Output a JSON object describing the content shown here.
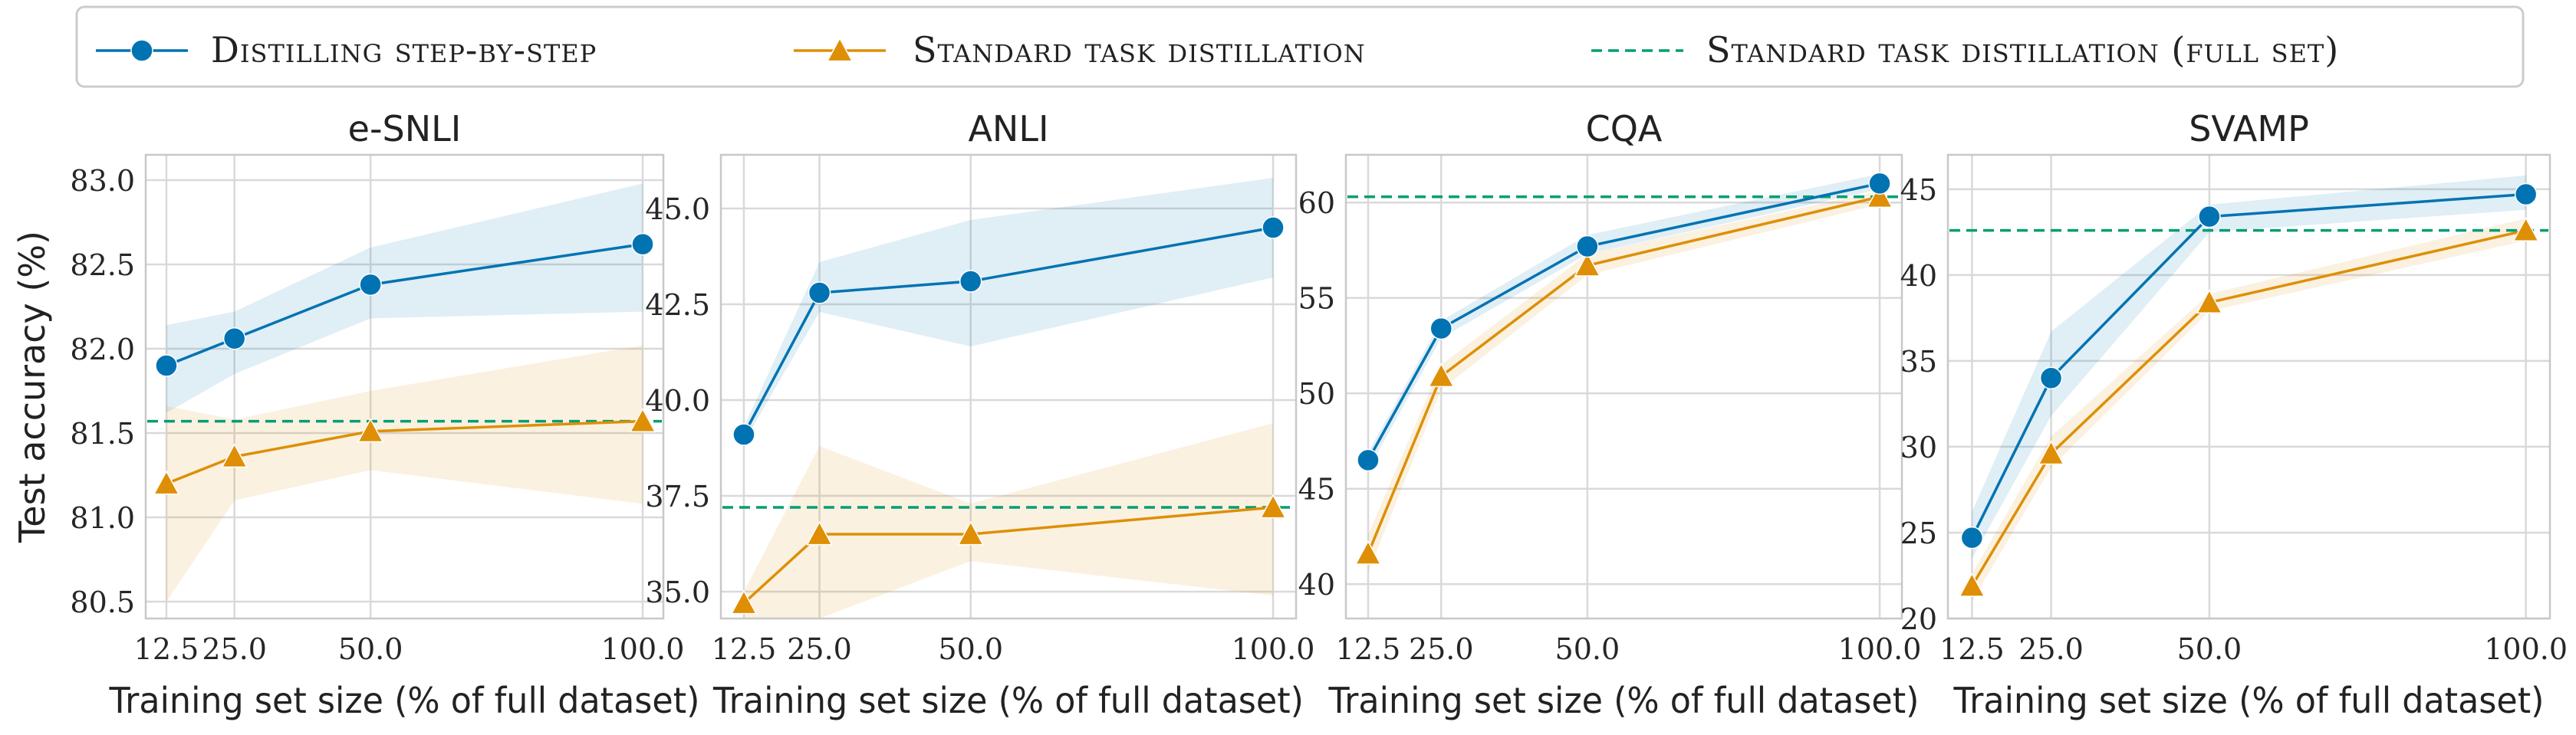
{
  "legend": {
    "items": [
      {
        "key": "dss",
        "label": "Distilling step-by-step",
        "color": "#0173b2",
        "marker": "circle",
        "style": "solid"
      },
      {
        "key": "std",
        "label": "Standard task distillation",
        "color": "#de8f05",
        "marker": "triangle",
        "style": "solid"
      },
      {
        "key": "full",
        "label": "Standard task distillation (full set)",
        "color": "#029e73",
        "marker": "none",
        "style": "dashed"
      }
    ],
    "placement": "top-center"
  },
  "colors": {
    "dss": "#0173b2",
    "std": "#de8f05",
    "full": "#029e73",
    "grid": "#d9d9d9",
    "frame": "#c8c8c8"
  },
  "chart_data": [
    {
      "type": "line",
      "title": "e-SNLI",
      "xlabel": "Training set size (% of full dataset)",
      "ylabel": "Test accuracy (%)",
      "x": [
        12.5,
        25.0,
        50.0,
        100.0
      ],
      "xticks": [
        "12.5",
        "25.0",
        "50.0",
        "100.0"
      ],
      "ylim": [
        80.4,
        83.15
      ],
      "yticks": [
        80.5,
        81.0,
        81.5,
        82.0,
        82.5,
        83.0
      ],
      "ytick_labels": [
        "80.5",
        "81.0",
        "81.5",
        "82.0",
        "82.5",
        "83.0"
      ],
      "grid": true,
      "series": [
        {
          "name": "Distilling step-by-step",
          "values": [
            81.9,
            82.06,
            82.38,
            82.62
          ],
          "lower": [
            81.62,
            81.85,
            82.18,
            82.22
          ],
          "upper": [
            82.14,
            82.22,
            82.6,
            82.98
          ]
        },
        {
          "name": "Standard task distillation",
          "values": [
            81.2,
            81.36,
            81.51,
            81.57
          ],
          "lower": [
            80.5,
            81.1,
            81.28,
            81.08
          ],
          "upper": [
            81.66,
            81.58,
            81.75,
            82.02
          ]
        }
      ],
      "reference_line": {
        "name": "Standard task distillation (full set)",
        "value": 81.57
      }
    },
    {
      "type": "line",
      "title": "ANLI",
      "xlabel": "Training set size (% of full dataset)",
      "ylabel": "",
      "x": [
        12.5,
        25.0,
        50.0,
        100.0
      ],
      "xticks": [
        "12.5",
        "25.0",
        "50.0",
        "100.0"
      ],
      "ylim": [
        34.3,
        46.4
      ],
      "yticks": [
        35.0,
        37.5,
        40.0,
        42.5,
        45.0
      ],
      "ytick_labels": [
        "35.0",
        "37.5",
        "40.0",
        "42.5",
        "45.0"
      ],
      "grid": true,
      "series": [
        {
          "name": "Distilling step-by-step",
          "values": [
            39.1,
            42.8,
            43.1,
            44.5
          ],
          "lower": [
            38.9,
            42.3,
            41.4,
            43.2
          ],
          "upper": [
            39.3,
            43.6,
            44.7,
            45.8
          ]
        },
        {
          "name": "Standard task distillation",
          "values": [
            34.7,
            36.5,
            36.5,
            37.2
          ],
          "lower": [
            34.3,
            34.3,
            35.8,
            34.9
          ],
          "upper": [
            35.0,
            38.8,
            37.3,
            39.4
          ]
        }
      ],
      "reference_line": {
        "name": "Standard task distillation (full set)",
        "value": 37.2
      }
    },
    {
      "type": "line",
      "title": "CQA",
      "xlabel": "Training set size (% of full dataset)",
      "ylabel": "",
      "x": [
        12.5,
        25.0,
        50.0,
        100.0
      ],
      "xticks": [
        "12.5",
        "25.0",
        "50.0",
        "100.0"
      ],
      "ylim": [
        38.2,
        62.5
      ],
      "yticks": [
        40,
        45,
        50,
        55,
        60
      ],
      "ytick_labels": [
        "40",
        "45",
        "50",
        "55",
        "60"
      ],
      "grid": true,
      "series": [
        {
          "name": "Distilling step-by-step",
          "values": [
            46.5,
            53.4,
            57.7,
            61.0
          ],
          "lower": [
            46.0,
            52.9,
            57.3,
            60.7
          ],
          "upper": [
            46.9,
            53.8,
            58.3,
            61.5
          ]
        },
        {
          "name": "Standard task distillation",
          "values": [
            41.6,
            50.9,
            56.7,
            60.3
          ],
          "lower": [
            40.6,
            50.2,
            56.2,
            59.9
          ],
          "upper": [
            42.6,
            51.5,
            57.3,
            60.6
          ]
        }
      ],
      "reference_line": {
        "name": "Standard task distillation (full set)",
        "value": 60.3
      }
    },
    {
      "type": "line",
      "title": "SVAMP",
      "xlabel": "Training set size (% of full dataset)",
      "ylabel": "",
      "x": [
        12.5,
        25.0,
        50.0,
        100.0
      ],
      "xticks": [
        "12.5",
        "25.0",
        "50.0",
        "100.0"
      ],
      "ylim": [
        20.0,
        47.0
      ],
      "yticks": [
        20,
        25,
        30,
        35,
        40,
        45
      ],
      "ytick_labels": [
        "20",
        "25",
        "30",
        "35",
        "40",
        "45"
      ],
      "grid": true,
      "series": [
        {
          "name": "Distilling step-by-step",
          "values": [
            24.7,
            34.0,
            43.4,
            44.7
          ],
          "lower": [
            23.5,
            31.8,
            42.5,
            43.8
          ],
          "upper": [
            26.2,
            36.7,
            44.1,
            45.8
          ]
        },
        {
          "name": "Standard task distillation",
          "values": [
            21.9,
            29.6,
            38.4,
            42.6
          ],
          "lower": [
            21.0,
            28.8,
            37.9,
            42.0
          ],
          "upper": [
            22.6,
            30.6,
            38.9,
            43.3
          ]
        }
      ],
      "reference_line": {
        "name": "Standard task distillation (full set)",
        "value": 42.6
      }
    }
  ]
}
